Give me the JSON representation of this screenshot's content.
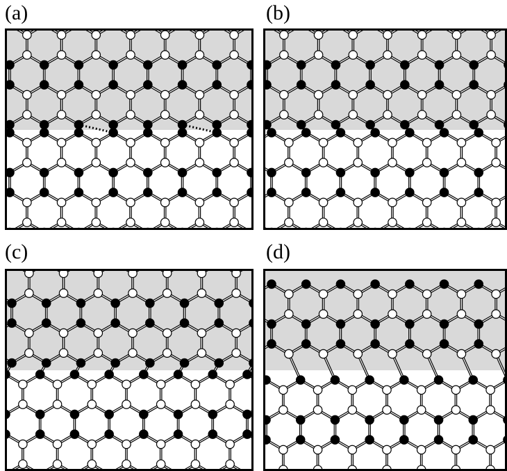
{
  "figure": {
    "panels": [
      {
        "id": "a",
        "label": "(a)",
        "interface": "dotted-bonds"
      },
      {
        "id": "b",
        "label": "(b)",
        "interface": "tilted-bonds"
      },
      {
        "id": "c",
        "label": "(c)",
        "interface": "pentagon-heptagon"
      },
      {
        "id": "d",
        "label": "(d)",
        "interface": "pentagon-heptagon-wide"
      }
    ],
    "colors": {
      "shaded_region": "#d9d9d9",
      "bond": "#000000",
      "atom_black": "#000000",
      "atom_white": "#ffffff",
      "frame": "#000000"
    }
  }
}
